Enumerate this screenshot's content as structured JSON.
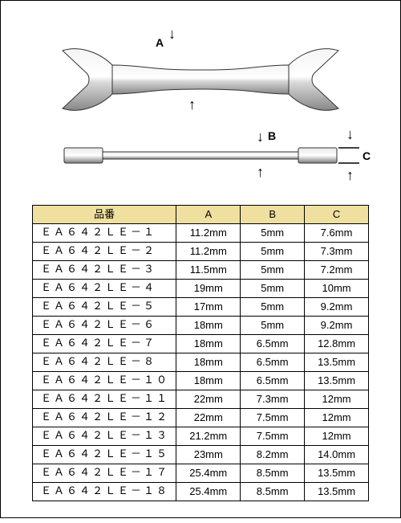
{
  "diagram": {
    "label_A": "A",
    "label_B": "B",
    "label_C": "C"
  },
  "table": {
    "headers": {
      "part": "品番",
      "a": "A",
      "b": "B",
      "c": "C"
    },
    "rows": [
      {
        "part": "ＥＡ６４２ＬＥ－１",
        "a": "11.2mm",
        "b": "5mm",
        "c": "7.6mm"
      },
      {
        "part": "ＥＡ６４２ＬＥ－２",
        "a": "11.2mm",
        "b": "5mm",
        "c": "7.3mm"
      },
      {
        "part": "ＥＡ６４２ＬＥ－３",
        "a": "11.5mm",
        "b": "5mm",
        "c": "7.2mm"
      },
      {
        "part": "ＥＡ６４２ＬＥ－４",
        "a": "19mm",
        "b": "5mm",
        "c": "10mm"
      },
      {
        "part": "ＥＡ６４２ＬＥ－５",
        "a": "17mm",
        "b": "5mm",
        "c": "9.2mm"
      },
      {
        "part": "ＥＡ６４２ＬＥ－６",
        "a": "18mm",
        "b": "5mm",
        "c": "9.2mm"
      },
      {
        "part": "ＥＡ６４２ＬＥ－７",
        "a": "18mm",
        "b": "6.5mm",
        "c": "12.8mm"
      },
      {
        "part": "ＥＡ６４２ＬＥ－８",
        "a": "18mm",
        "b": "6.5mm",
        "c": "13.5mm"
      },
      {
        "part": "ＥＡ６４２ＬＥ－１０",
        "a": "18mm",
        "b": "6.5mm",
        "c": "13.5mm"
      },
      {
        "part": "ＥＡ６４２ＬＥ－１１",
        "a": "22mm",
        "b": "7.3mm",
        "c": "12mm"
      },
      {
        "part": "ＥＡ６４２ＬＥ－１２",
        "a": "22mm",
        "b": "7.5mm",
        "c": "12mm"
      },
      {
        "part": "ＥＡ６４２ＬＥ－１３",
        "a": "21.2mm",
        "b": "7.5mm",
        "c": "12mm"
      },
      {
        "part": "ＥＡ６４２ＬＥ－１５",
        "a": "23mm",
        "b": "8.2mm",
        "c": "14.0mm"
      },
      {
        "part": "ＥＡ６４２ＬＥ－１７",
        "a": "25.4mm",
        "b": "8.5mm",
        "c": "13.5mm"
      },
      {
        "part": "ＥＡ６４２ＬＥ－１８",
        "a": "25.4mm",
        "b": "8.5mm",
        "c": "13.5mm"
      }
    ]
  },
  "style": {
    "header_bg": "#f0e0a0",
    "border_color": "#000000",
    "font_size_pt": 10
  }
}
